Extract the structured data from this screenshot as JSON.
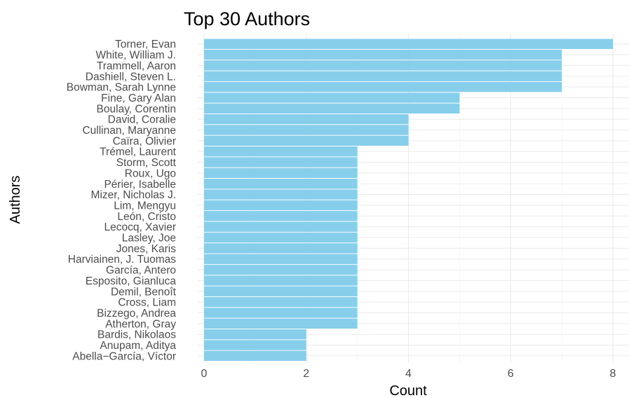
{
  "chart_data": {
    "type": "bar",
    "orientation": "horizontal",
    "title": "Top 30 Authors",
    "xlabel": "Count",
    "ylabel": "Authors",
    "xlim": [
      0,
      8
    ],
    "xticks": [
      0,
      2,
      4,
      6,
      8
    ],
    "bar_color": "#87CEEB",
    "grid": true,
    "categories": [
      "Torner, Evan",
      "White, William J.",
      "Trammell, Aaron",
      "Dashiell, Steven L.",
      "Bowman, Sarah Lynne",
      "Fine, Gary Alan",
      "Boulay, Corentin",
      "David, Coralie",
      "Cullinan, Maryanne",
      "Caïra, Olivier",
      "Trémel, Laurent",
      "Storm, Scott",
      "Roux, Ugo",
      "Périer, Isabelle",
      "Mizer, Nicholas J.",
      "Lim, Mengyu",
      "León, Cristo",
      "Lecocq, Xavier",
      "Lasley, Joe",
      "Jones, Karis",
      "Harviainen, J. Tuomas",
      "García, Antero",
      "Esposito, Gianluca",
      "Demil, Benoît",
      "Cross, Liam",
      "Bizzego, Andrea",
      "Atherton, Gray",
      "Bardis, Nikolaos",
      "Anupam, Aditya",
      "Abella−García, Víctor"
    ],
    "values": [
      8,
      7,
      7,
      7,
      7,
      5,
      5,
      4,
      4,
      4,
      3,
      3,
      3,
      3,
      3,
      3,
      3,
      3,
      3,
      3,
      3,
      3,
      3,
      3,
      3,
      3,
      3,
      2,
      2,
      2
    ]
  }
}
